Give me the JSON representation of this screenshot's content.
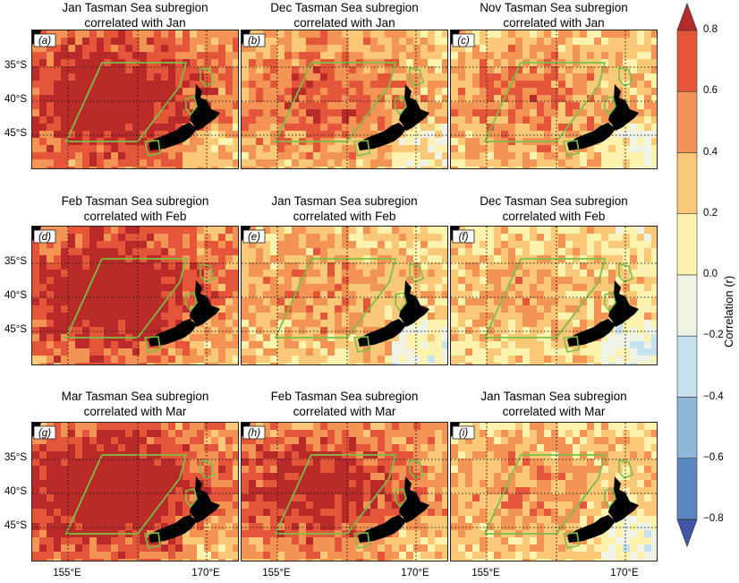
{
  "colors": {
    "land": "#000000",
    "subregion_outline": "#7bc043",
    "gridlines": "#222222",
    "levels": [
      "#3f58a5",
      "#5a86c1",
      "#8fb6da",
      "#c6e2ef",
      "#eef3e6",
      "#fdf3ae",
      "#fbc877",
      "#f39454",
      "#e5553a",
      "#b92a28"
    ]
  },
  "chart_data": {
    "type": "heatmap",
    "layout": "3x3 grid of maps",
    "panels": [
      {
        "tag": "(a)",
        "title_line1": "Jan Tasman Sea subregion",
        "title_line2": "correlated with Jan",
        "intensity": 0.78
      },
      {
        "tag": "(b)",
        "title_line1": "Dec Tasman Sea subregion",
        "title_line2": "correlated with Jan",
        "intensity": 0.5
      },
      {
        "tag": "(c)",
        "title_line1": "Nov Tasman Sea subregion",
        "title_line2": "correlated with Jan",
        "intensity": 0.42
      },
      {
        "tag": "(d)",
        "title_line1": "Feb Tasman Sea subregion",
        "title_line2": "correlated with Feb",
        "intensity": 0.8
      },
      {
        "tag": "(e)",
        "title_line1": "Jan Tasman Sea subregion",
        "title_line2": "correlated with Feb",
        "intensity": 0.36
      },
      {
        "tag": "(f)",
        "title_line1": "Dec Tasman Sea subregion",
        "title_line2": "correlated with Feb",
        "intensity": 0.3
      },
      {
        "tag": "(g)",
        "title_line1": "Mar Tasman Sea subregion",
        "title_line2": "correlated with Mar",
        "intensity": 0.82
      },
      {
        "tag": "(h)",
        "title_line1": "Feb Tasman Sea subregion",
        "title_line2": "correlated with Mar",
        "intensity": 0.68
      },
      {
        "tag": "(i)",
        "title_line1": "Jan Tasman Sea subregion",
        "title_line2": "correlated with Mar",
        "intensity": 0.35
      }
    ],
    "lat_ticks": [
      "35°S",
      "40°S",
      "45°S"
    ],
    "lon_ticks": [
      "155°E",
      "170°E"
    ],
    "colorbar": {
      "label": "Correlation (r)",
      "ticks": [
        "0.8",
        "0.6",
        "0.4",
        "0.2",
        "0.0",
        "−0.2",
        "−0.4",
        "−0.6",
        "−0.8"
      ],
      "range": [
        -0.8,
        0.8
      ]
    }
  }
}
